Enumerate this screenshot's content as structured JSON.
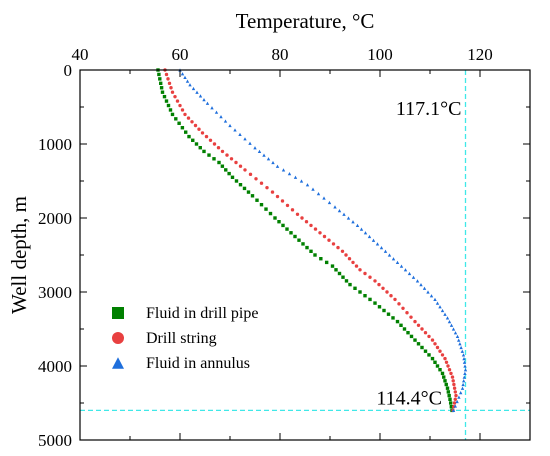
{
  "chart_data": {
    "type": "scatter",
    "xlabel": "Temperature, °C",
    "ylabel": "Well depth, m",
    "x_axis_position": "top",
    "y_axis_inverted": true,
    "xlim": [
      40,
      130
    ],
    "ylim": [
      0,
      5000
    ],
    "x_ticks": [
      40,
      60,
      80,
      100,
      120
    ],
    "y_ticks": [
      0,
      1000,
      2000,
      3000,
      4000,
      5000
    ],
    "grid": false,
    "legend": "bottom-left",
    "series": [
      {
        "name": "Fluid in drill pipe",
        "color": "#008000",
        "marker": "square",
        "points": [
          [
            55.6,
            0
          ],
          [
            56.5,
            300
          ],
          [
            58.5,
            600
          ],
          [
            61.8,
            900
          ],
          [
            64.8,
            1100
          ],
          [
            67.8,
            1250
          ],
          [
            70.5,
            1450
          ],
          [
            74.5,
            1700
          ],
          [
            79,
            2000
          ],
          [
            83,
            2250
          ],
          [
            87,
            2500
          ],
          [
            90.5,
            2650
          ],
          [
            94,
            2900
          ],
          [
            99,
            3150
          ],
          [
            103.5,
            3400
          ],
          [
            107,
            3650
          ],
          [
            110.5,
            3900
          ],
          [
            112.5,
            4100
          ],
          [
            113.5,
            4300
          ],
          [
            114,
            4450
          ],
          [
            114.4,
            4600
          ]
        ]
      },
      {
        "name": "Drill string",
        "color": "#e84040",
        "marker": "circle",
        "points": [
          [
            57,
            0
          ],
          [
            58.5,
            300
          ],
          [
            61,
            600
          ],
          [
            64.5,
            850
          ],
          [
            68.5,
            1100
          ],
          [
            73,
            1350
          ],
          [
            78.5,
            1650
          ],
          [
            83.5,
            1950
          ],
          [
            88,
            2200
          ],
          [
            92.5,
            2450
          ],
          [
            96,
            2700
          ],
          [
            99,
            2850
          ],
          [
            103,
            3100
          ],
          [
            107,
            3400
          ],
          [
            110.5,
            3650
          ],
          [
            113,
            3900
          ],
          [
            114.5,
            4150
          ],
          [
            115.2,
            4400
          ],
          [
            114.6,
            4600
          ]
        ]
      },
      {
        "name": "Fluid in annulus",
        "color": "#1f6fdc",
        "marker": "triangle",
        "points": [
          [
            60,
            0
          ],
          [
            62,
            200
          ],
          [
            65.5,
            450
          ],
          [
            70,
            750
          ],
          [
            75,
            1050
          ],
          [
            79.5,
            1300
          ],
          [
            85.5,
            1550
          ],
          [
            91,
            1850
          ],
          [
            95.5,
            2100
          ],
          [
            99.5,
            2350
          ],
          [
            103.5,
            2600
          ],
          [
            107.5,
            2850
          ],
          [
            111,
            3100
          ],
          [
            113.5,
            3350
          ],
          [
            115.5,
            3600
          ],
          [
            116.7,
            3850
          ],
          [
            117.1,
            4050
          ],
          [
            116.5,
            4300
          ],
          [
            114.7,
            4600
          ]
        ]
      }
    ],
    "reference_lines": [
      {
        "orientation": "vertical",
        "x": 117.1,
        "color": "#40e8e8",
        "style": "dashed"
      },
      {
        "orientation": "horizontal",
        "y": 4600,
        "color": "#40e8e8",
        "style": "dashed"
      }
    ],
    "annotations": [
      {
        "text": "117.1°C",
        "x": 117.1,
        "y": 500
      },
      {
        "text": "114.4°C",
        "x": 114.4,
        "y": 4600
      }
    ]
  }
}
